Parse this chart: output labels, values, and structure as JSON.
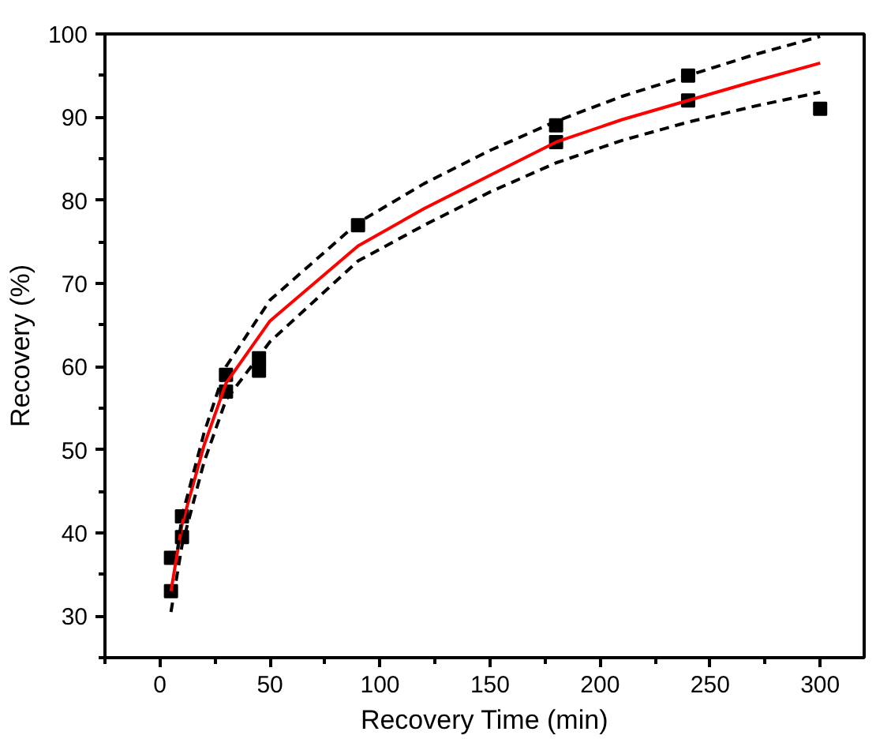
{
  "chart_data": {
    "type": "scatter",
    "xlabel": "Recovery Time (min)",
    "ylabel": "Recovery (%)",
    "xlim": [
      -25,
      320
    ],
    "ylim": [
      25,
      100
    ],
    "xticks": [
      0,
      50,
      100,
      150,
      200,
      250,
      300
    ],
    "yticks": [
      30,
      40,
      50,
      60,
      70,
      80,
      90,
      100
    ],
    "grid": false,
    "series": [
      {
        "marker": "square",
        "color": "#000000",
        "x": [
          5,
          5,
          10,
          10,
          30,
          30,
          45,
          45,
          90,
          180,
          180,
          240,
          240,
          300
        ],
        "values": [
          33,
          37,
          42,
          39.5,
          59,
          57,
          61,
          59.5,
          77,
          89,
          87,
          95,
          92,
          91
        ]
      },
      {
        "type": "line",
        "line_style": "solid",
        "color": "#ff0000",
        "x": [
          5,
          10,
          20,
          30,
          50,
          90,
          120,
          150,
          180,
          210,
          240,
          270,
          300
        ],
        "values": [
          33,
          41,
          50.5,
          58,
          65.5,
          74.5,
          79,
          83,
          87,
          89.7,
          92,
          94.3,
          96.5
        ]
      },
      {
        "type": "line",
        "line_style": "dashed",
        "color": "#000000",
        "x": [
          8,
          10,
          20,
          30,
          50,
          90,
          120,
          150,
          180,
          210,
          240,
          270,
          300
        ],
        "values": [
          38,
          42,
          52,
          60,
          68,
          77.3,
          82,
          86,
          89.5,
          92.5,
          95,
          97.5,
          99.7
        ]
      },
      {
        "type": "line",
        "line_style": "dashed",
        "color": "#000000",
        "x": [
          5,
          10,
          20,
          30,
          50,
          90,
          120,
          150,
          180,
          210,
          240,
          270,
          300
        ],
        "values": [
          30.5,
          38.5,
          48.5,
          56,
          63,
          72.7,
          77,
          81,
          84.5,
          87.2,
          89.4,
          91.3,
          93
        ]
      }
    ]
  }
}
